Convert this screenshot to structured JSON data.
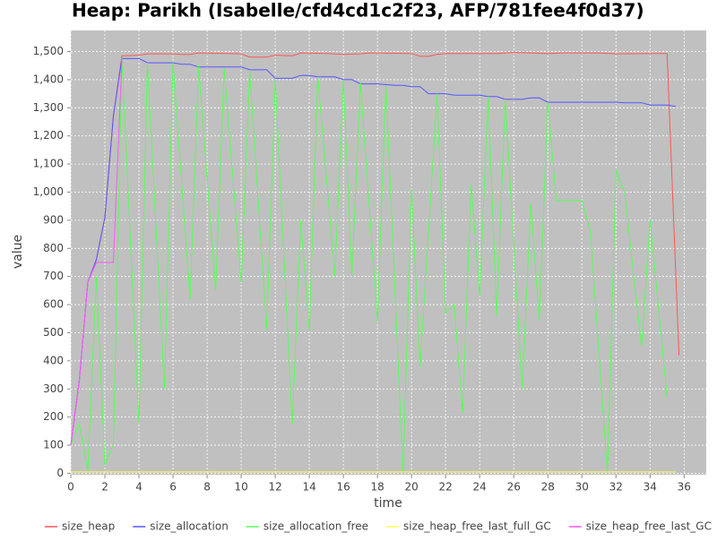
{
  "chart_data": {
    "type": "line",
    "title": "Heap: Parikh (Isabelle/cfd4cd1c2f23, AFP/781fee4f0d37)",
    "xlabel": "time",
    "ylabel": "value",
    "xlim": [
      0,
      37.3
    ],
    "ylim": [
      -5,
      1575
    ],
    "xticks": [
      0,
      2,
      4,
      6,
      8,
      10,
      12,
      14,
      16,
      18,
      20,
      22,
      24,
      26,
      28,
      30,
      32,
      34,
      36
    ],
    "yticks": [
      0,
      100,
      200,
      300,
      400,
      500,
      600,
      700,
      800,
      900,
      {
        "value": 1000,
        "label": "1,000"
      },
      {
        "value": 1100,
        "label": "1,100"
      },
      {
        "value": 1200,
        "label": "1,200"
      },
      {
        "value": 1300,
        "label": "1,300"
      },
      {
        "value": 1400,
        "label": "1,400"
      },
      {
        "value": 1500,
        "label": "1,500"
      }
    ],
    "grid": true,
    "series": [
      {
        "name": "size_heap",
        "color": "#ff5555",
        "x": [
          0,
          0.5,
          1,
          1.5,
          2,
          2.5,
          3,
          4,
          4.5,
          6,
          6.5,
          7,
          7.5,
          10,
          10.5,
          11.5,
          12,
          13,
          13.5,
          15,
          16,
          17,
          17.5,
          20,
          20.5,
          21,
          21.5,
          22,
          25,
          26,
          27,
          28,
          29,
          31,
          32,
          34,
          35,
          35.7
        ],
        "values": [
          100,
          330,
          680,
          760,
          910,
          1270,
          1485,
          1487,
          1492,
          1492,
          1490,
          1490,
          1495,
          1492,
          1480,
          1480,
          1487,
          1485,
          1495,
          1493,
          1490,
          1492,
          1495,
          1493,
          1483,
          1483,
          1490,
          1493,
          1493,
          1497,
          1495,
          1493,
          1495,
          1495,
          1492,
          1493,
          1493,
          420
        ]
      },
      {
        "name": "size_allocation",
        "color": "#5555ff",
        "x": [
          0,
          0.5,
          1,
          1.5,
          2,
          2.5,
          3,
          4,
          4.5,
          6,
          6.5,
          7,
          7.5,
          10,
          10.5,
          11.5,
          12,
          13,
          13.5,
          14,
          14.5,
          15.5,
          16,
          16.5,
          17,
          18,
          19,
          19.5,
          20,
          20.5,
          21,
          22,
          22.5,
          24,
          24.5,
          25,
          25.5,
          26.5,
          27,
          27.5,
          28,
          32,
          32.5,
          33.5,
          34,
          35,
          35.5
        ],
        "values": [
          100,
          330,
          680,
          760,
          910,
          1270,
          1475,
          1475,
          1460,
          1460,
          1455,
          1455,
          1445,
          1445,
          1435,
          1435,
          1405,
          1405,
          1415,
          1415,
          1410,
          1410,
          1400,
          1400,
          1385,
          1385,
          1380,
          1380,
          1375,
          1375,
          1350,
          1350,
          1345,
          1345,
          1340,
          1340,
          1330,
          1330,
          1335,
          1335,
          1320,
          1320,
          1318,
          1318,
          1310,
          1310,
          1305
        ]
      },
      {
        "name": "size_allocation_free",
        "color": "#55ff55",
        "x": [
          0,
          0.5,
          1,
          1.5,
          2,
          2.5,
          3,
          4,
          4.5,
          5.5,
          6,
          7,
          7.5,
          8.5,
          9,
          10,
          10.5,
          11.5,
          12,
          13,
          13.5,
          14,
          14.5,
          15.5,
          16,
          16.5,
          17,
          18,
          18.5,
          19.5,
          20,
          20.5,
          21.5,
          22,
          22.5,
          23,
          23.5,
          24,
          24.5,
          25,
          25.5,
          26.5,
          27,
          27.5,
          28,
          28.5,
          30,
          30.5,
          31.5,
          32,
          32.5,
          33.5,
          34,
          35
        ],
        "values": [
          100,
          175,
          10,
          700,
          30,
          100,
          1475,
          180,
          1460,
          300,
          1460,
          620,
          1450,
          650,
          1440,
          680,
          1430,
          510,
          1400,
          175,
          900,
          510,
          1410,
          700,
          1400,
          700,
          1390,
          540,
          1380,
          0,
          1010,
          380,
          1350,
          570,
          600,
          215,
          1030,
          630,
          1340,
          560,
          1330,
          300,
          960,
          540,
          1320,
          970,
          970,
          860,
          0,
          1080,
          1000,
          450,
          900,
          270
        ]
      },
      {
        "name": "size_heap_free_last_full_GC",
        "color": "#ffff55",
        "x": [
          0,
          35.5
        ],
        "values": [
          5,
          5
        ]
      },
      {
        "name": "size_heap_free_last_GC",
        "color": "#ff55ff",
        "x": [
          0,
          0.5,
          1,
          1.5,
          2,
          2.5,
          3
        ],
        "values": [
          100,
          330,
          680,
          750,
          750,
          750,
          1470
        ]
      }
    ]
  }
}
